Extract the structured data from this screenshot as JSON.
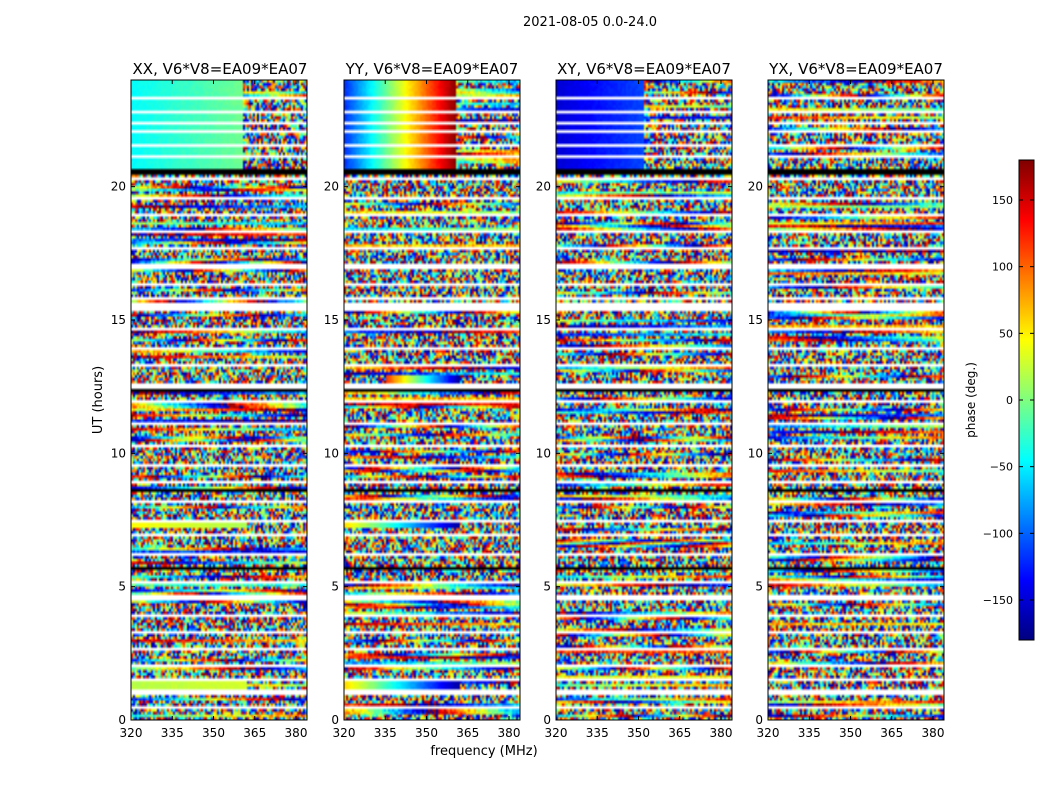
{
  "chart_data": {
    "type": "heatmap",
    "suptitle": "2021-08-05 0.0-24.0",
    "xlabel": "frequency (MHz)",
    "ylabel": "UT (hours)",
    "xlim": [
      320,
      384
    ],
    "ylim": [
      0,
      24
    ],
    "xticks": [
      320,
      335,
      350,
      365,
      380
    ],
    "yticks": [
      0,
      5,
      10,
      15,
      20
    ],
    "colorbar": {
      "label": "phase (deg.)",
      "range": [
        -180,
        180
      ],
      "ticks": [
        150,
        100,
        50,
        0,
        -50,
        -100,
        -150
      ],
      "ticklabels": [
        "150",
        "100",
        "50",
        "0",
        "−50",
        "−100",
        "−150"
      ],
      "colormap": "jet",
      "colors": [
        "#00007f",
        "#0000ff",
        "#007fff",
        "#00ffff",
        "#7fff7f",
        "#ffff00",
        "#ff7f00",
        "#ff0000",
        "#7f0000"
      ]
    },
    "blank_rows_ut": [
      0.5,
      1.05,
      1.55,
      2.05,
      2.65,
      3.3,
      3.95,
      4.6,
      5.15,
      5.65,
      6.25,
      6.9,
      7.5,
      8.15,
      8.9,
      9.55,
      10.3,
      11.1,
      11.95,
      12.45,
      12.6,
      13.3,
      13.95,
      14.7,
      15.35,
      15.55,
      15.85,
      16.35,
      17.0,
      17.65,
      18.3,
      18.95,
      19.6,
      20.3,
      20.65,
      21.15,
      21.55,
      22.05,
      22.4,
      22.8,
      23.3
    ],
    "black_rows_ut": [
      5.7,
      8.65,
      12.35,
      20.55
    ],
    "panels": [
      {
        "title": "XX, V6*V8=EA09*EA07",
        "coherent_bands": [
          {
            "ut": [
              20.6,
              24.0
            ],
            "freq": [
              320,
              384
            ],
            "phase_start": -45,
            "phase_end": -5,
            "noisy_above_mhz": 361
          },
          {
            "ut": [
              7.15,
              7.45
            ],
            "freq": [
              320,
              362
            ],
            "phase_start": 45,
            "phase_end": 15,
            "noisy_above_mhz": 362
          },
          {
            "ut": [
              1.15,
              1.45
            ],
            "freq": [
              320,
              362
            ],
            "phase_start": 20,
            "phase_end": 30,
            "noisy_above_mhz": 362
          }
        ]
      },
      {
        "title": "YY, V6*V8=EA09*EA07",
        "coherent_bands": [
          {
            "ut": [
              20.6,
              24.0
            ],
            "freq": [
              320,
              384
            ],
            "phase_start": -120,
            "phase_end": 180,
            "noisy_above_mhz": 361
          },
          {
            "ut": [
              12.3,
              12.9
            ],
            "freq": [
              335,
              362
            ],
            "phase_start": 120,
            "phase_end": -170,
            "noisy_above_mhz": 362
          },
          {
            "ut": [
              7.15,
              7.45
            ],
            "freq": [
              320,
              362
            ],
            "phase_start": 60,
            "phase_end": -170,
            "noisy_above_mhz": 362
          },
          {
            "ut": [
              1.15,
              1.45
            ],
            "freq": [
              320,
              362
            ],
            "phase_start": 60,
            "phase_end": -170,
            "noisy_above_mhz": 362
          }
        ]
      },
      {
        "title": "XY, V6*V8=EA09*EA07",
        "coherent_bands": [
          {
            "ut": [
              20.6,
              24.0
            ],
            "freq": [
              320,
              384
            ],
            "phase_start": -150,
            "phase_end": -110,
            "noisy_above_mhz": 352
          }
        ]
      },
      {
        "title": "YX, V6*V8=EA09*EA07",
        "coherent_bands": []
      }
    ]
  }
}
